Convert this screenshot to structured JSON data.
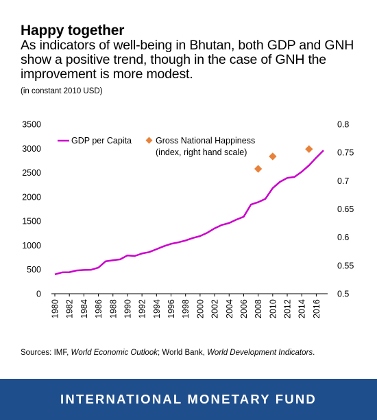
{
  "header": {
    "title": "Happy together",
    "subtitle": "As indicators of well-being in Bhutan, both GDP and GNH show a positive trend, though in the case of GNH the improvement is more modest.",
    "units": "(in constant 2010 USD)"
  },
  "sources": {
    "prefix": "Sources: IMF, ",
    "weo": "World Economic Outlook",
    "mid": "; World Bank, ",
    "wdi": "World Development Indicators",
    "suffix": "."
  },
  "footer": {
    "label": "INTERNATIONAL MONETARY FUND"
  },
  "colors": {
    "gdp": "#cc00cc",
    "gnh": "#e8823a",
    "footer_bg": "#1f4e8c"
  },
  "chart_data": {
    "type": "line",
    "x_tick_labels": [
      "1980",
      "1982",
      "1984",
      "1986",
      "1988",
      "1990",
      "1992",
      "1994",
      "1996",
      "1998",
      "2000",
      "2002",
      "2004",
      "2006",
      "2008",
      "2010",
      "2012",
      "2014",
      "2016"
    ],
    "left_axis": {
      "range": [
        0,
        3500
      ],
      "ticks": [
        "0",
        "500",
        "1000",
        "1500",
        "2000",
        "2500",
        "3000",
        "3500"
      ]
    },
    "right_axis": {
      "range": [
        0.5,
        0.8
      ],
      "ticks": [
        "0.5",
        "0.55",
        "0.6",
        "0.65",
        "0.7",
        "0.75",
        "0.8"
      ]
    },
    "legend_position": "top-left",
    "series": [
      {
        "name": "GDP per Capita",
        "axis": "left",
        "x": [
          1980,
          1981,
          1982,
          1983,
          1984,
          1985,
          1986,
          1987,
          1988,
          1989,
          1990,
          1991,
          1992,
          1993,
          1994,
          1995,
          1996,
          1997,
          1998,
          1999,
          2000,
          2001,
          2002,
          2003,
          2004,
          2005,
          2006,
          2007,
          2008,
          2009,
          2010,
          2011,
          2012,
          2013,
          2014,
          2015,
          2016,
          2017
        ],
        "values": [
          400,
          440,
          445,
          480,
          490,
          495,
          540,
          670,
          690,
          710,
          790,
          780,
          830,
          860,
          920,
          980,
          1030,
          1060,
          1100,
          1150,
          1190,
          1260,
          1350,
          1420,
          1460,
          1530,
          1590,
          1840,
          1890,
          1960,
          2180,
          2310,
          2390,
          2410,
          2520,
          2650,
          2810,
          2960
        ]
      },
      {
        "name": "Gross National Happiness",
        "name_line2": "(index, right hand scale)",
        "axis": "right",
        "x": [
          2008,
          2010,
          2015
        ],
        "values": [
          0.721,
          0.743,
          0.756
        ]
      }
    ]
  }
}
